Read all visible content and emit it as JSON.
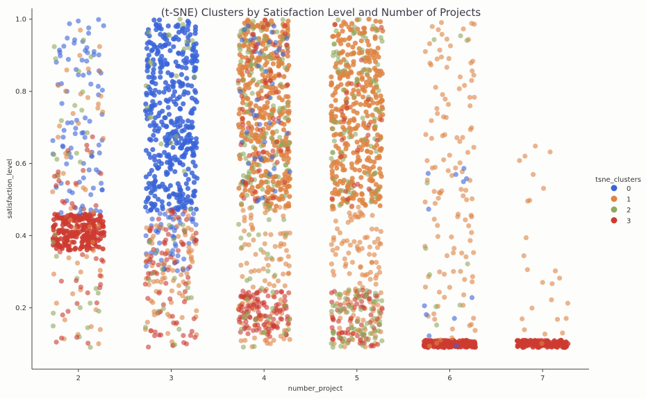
{
  "chart_data": {
    "type": "scatter",
    "title": "(t-SNE) Clusters by Satisfaction Level and Number of Projects",
    "xlabel": "number_project",
    "ylabel": "satisfaction_level",
    "xticks": [
      "2",
      "3",
      "4",
      "5",
      "6",
      "7"
    ],
    "yticks": [
      "0.2",
      "0.4",
      "0.6",
      "0.8",
      "1.0"
    ],
    "xlim": [
      1.5,
      7.5
    ],
    "ylim": [
      0.03,
      1.03
    ],
    "jitter": 0.48,
    "legend": {
      "title": "tsne_clusters",
      "placement": "right"
    },
    "series": [
      {
        "name": "0",
        "color": "#3a64d8"
      },
      {
        "name": "1",
        "color": "#de8442"
      },
      {
        "name": "2",
        "color": "#8faa5e"
      },
      {
        "name": "3",
        "color": "#cc3b30"
      }
    ],
    "regions": [
      {
        "series": 3,
        "x": 2,
        "y_range": [
          0.36,
          0.46
        ],
        "weight": 220,
        "note": "dense"
      },
      {
        "series": 0,
        "x": 2,
        "y_range": [
          0.46,
          1.0
        ],
        "weight": 90
      },
      {
        "series": 1,
        "x": 2,
        "y_range": [
          0.09,
          1.0
        ],
        "weight": 55
      },
      {
        "series": 2,
        "x": 2,
        "y_range": [
          0.09,
          1.0
        ],
        "weight": 30
      },
      {
        "series": 3,
        "x": 2,
        "y_range": [
          0.09,
          0.7
        ],
        "weight": 40
      },
      {
        "series": 0,
        "x": 3,
        "y_range": [
          0.47,
          1.0
        ],
        "weight": 420,
        "note": "dense"
      },
      {
        "series": 0,
        "x": 3,
        "y_range": [
          0.3,
          0.47
        ],
        "weight": 60
      },
      {
        "series": 1,
        "x": 3,
        "y_range": [
          0.09,
          0.47
        ],
        "weight": 80
      },
      {
        "series": 3,
        "x": 3,
        "y_range": [
          0.09,
          0.47
        ],
        "weight": 70
      },
      {
        "series": 2,
        "x": 3,
        "y_range": [
          0.09,
          1.0
        ],
        "weight": 40
      },
      {
        "series": 1,
        "x": 4,
        "y_range": [
          0.48,
          1.0
        ],
        "weight": 380,
        "note": "dense"
      },
      {
        "series": 2,
        "x": 4,
        "y_range": [
          0.48,
          1.0
        ],
        "weight": 110
      },
      {
        "series": 0,
        "x": 4,
        "y_range": [
          0.48,
          1.0
        ],
        "weight": 45
      },
      {
        "series": 3,
        "x": 4,
        "y_range": [
          0.48,
          1.0
        ],
        "weight": 55
      },
      {
        "series": 1,
        "x": 4,
        "y_range": [
          0.09,
          0.48
        ],
        "weight": 110
      },
      {
        "series": 3,
        "x": 4,
        "y_range": [
          0.12,
          0.25
        ],
        "weight": 110
      },
      {
        "series": 2,
        "x": 4,
        "y_range": [
          0.09,
          0.48
        ],
        "weight": 35
      },
      {
        "series": 1,
        "x": 5,
        "y_range": [
          0.48,
          1.0
        ],
        "weight": 360,
        "note": "dense"
      },
      {
        "series": 2,
        "x": 5,
        "y_range": [
          0.48,
          1.0
        ],
        "weight": 80
      },
      {
        "series": 3,
        "x": 5,
        "y_range": [
          0.48,
          1.0
        ],
        "weight": 25
      },
      {
        "series": 1,
        "x": 5,
        "y_range": [
          0.09,
          0.48
        ],
        "weight": 130
      },
      {
        "series": 3,
        "x": 5,
        "y_range": [
          0.09,
          0.25
        ],
        "weight": 70
      },
      {
        "series": 2,
        "x": 5,
        "y_range": [
          0.09,
          0.25
        ],
        "weight": 60
      },
      {
        "series": 3,
        "x": 6,
        "y_range": [
          0.09,
          0.11
        ],
        "weight": 180,
        "note": "dense"
      },
      {
        "series": 1,
        "x": 6,
        "y_range": [
          0.09,
          1.0
        ],
        "weight": 120
      },
      {
        "series": 0,
        "x": 6,
        "y_range": [
          0.09,
          0.6
        ],
        "weight": 12
      },
      {
        "series": 2,
        "x": 6,
        "y_range": [
          0.09,
          1.0
        ],
        "weight": 10
      },
      {
        "series": 3,
        "x": 7,
        "y_range": [
          0.09,
          0.11
        ],
        "weight": 120,
        "note": "dense"
      },
      {
        "series": 1,
        "x": 7,
        "y_range": [
          0.09,
          0.66
        ],
        "weight": 25
      }
    ]
  }
}
